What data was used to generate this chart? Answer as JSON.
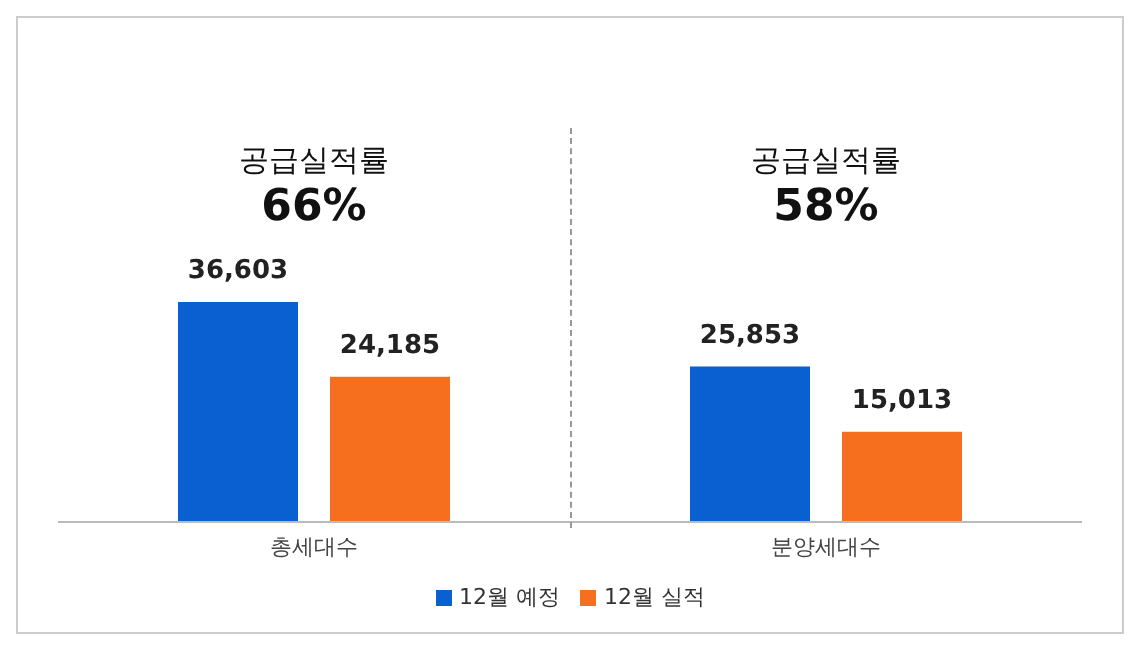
{
  "chart_data": {
    "type": "bar",
    "categories": [
      "총세대수",
      "분양세대수"
    ],
    "series": [
      {
        "name": "12월 예정",
        "color": "#0a5fd1",
        "values": [
          36603,
          25853
        ],
        "value_labels": [
          "36,603",
          "25,853"
        ]
      },
      {
        "name": "12월 실적",
        "color": "#f56f1f",
        "values": [
          24185,
          15013
        ],
        "value_labels": [
          "24,185",
          "15,013"
        ]
      }
    ],
    "tick_labels": "x",
    "legend": "bottom",
    "annotations": [
      "공급실적률",
      "66%",
      "공급실적률",
      "58%"
    ]
  }
}
